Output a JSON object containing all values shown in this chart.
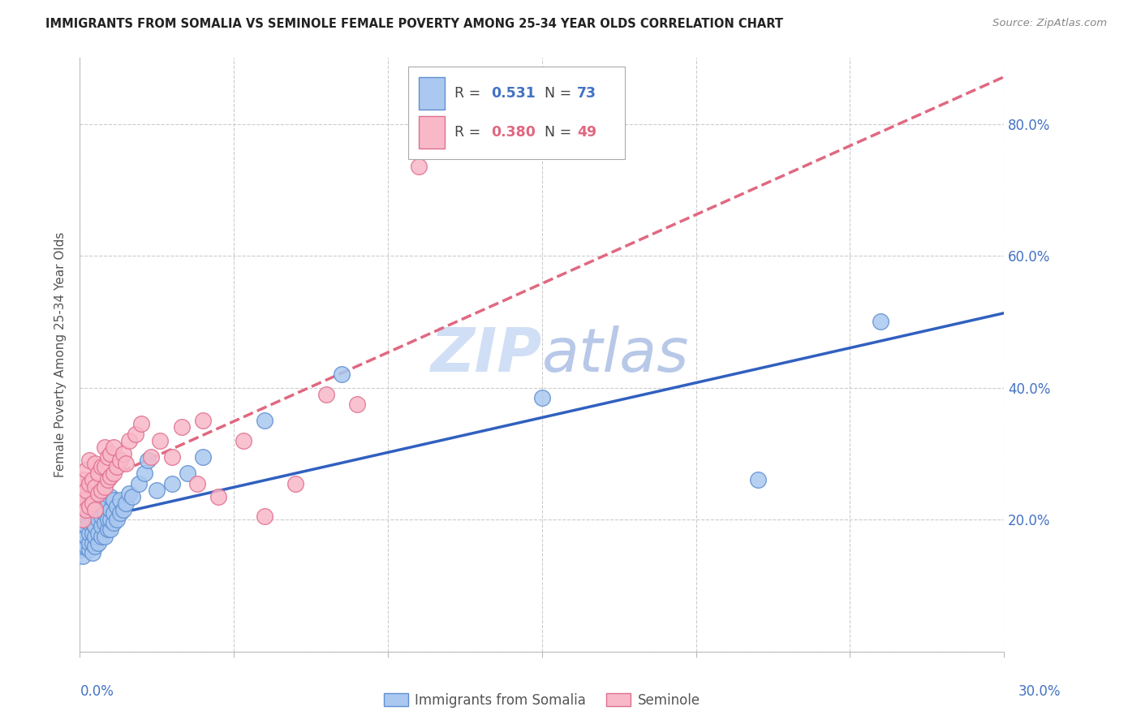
{
  "title": "IMMIGRANTS FROM SOMALIA VS SEMINOLE FEMALE POVERTY AMONG 25-34 YEAR OLDS CORRELATION CHART",
  "source": "Source: ZipAtlas.com",
  "ylabel": "Female Poverty Among 25-34 Year Olds",
  "xlim": [
    0.0,
    0.3
  ],
  "ylim": [
    0.0,
    0.9
  ],
  "r_somalia": 0.531,
  "n_somalia": 73,
  "r_seminole": 0.38,
  "n_seminole": 49,
  "color_somalia_fill": "#aac8f0",
  "color_somalia_edge": "#6090d0",
  "color_seminole_fill": "#f8b8c8",
  "color_seminole_edge": "#e07090",
  "color_somalia_line": "#3060c0",
  "color_seminole_line": "#e06880",
  "color_axis_text": "#4472c4",
  "watermark_color": "#d0dff5",
  "somalia_x": [
    0.0,
    0.0,
    0.0,
    0.0,
    0.001,
    0.001,
    0.001,
    0.001,
    0.001,
    0.002,
    0.002,
    0.002,
    0.002,
    0.002,
    0.003,
    0.003,
    0.003,
    0.003,
    0.003,
    0.003,
    0.004,
    0.004,
    0.004,
    0.004,
    0.004,
    0.004,
    0.005,
    0.005,
    0.005,
    0.005,
    0.005,
    0.006,
    0.006,
    0.006,
    0.006,
    0.007,
    0.007,
    0.007,
    0.007,
    0.008,
    0.008,
    0.008,
    0.008,
    0.009,
    0.009,
    0.009,
    0.01,
    0.01,
    0.01,
    0.01,
    0.011,
    0.011,
    0.011,
    0.012,
    0.012,
    0.013,
    0.013,
    0.014,
    0.015,
    0.016,
    0.017,
    0.019,
    0.021,
    0.022,
    0.025,
    0.03,
    0.035,
    0.04,
    0.06,
    0.085,
    0.15,
    0.22,
    0.26
  ],
  "somalia_y": [
    0.155,
    0.17,
    0.185,
    0.195,
    0.145,
    0.16,
    0.175,
    0.185,
    0.2,
    0.16,
    0.175,
    0.19,
    0.205,
    0.22,
    0.155,
    0.165,
    0.18,
    0.195,
    0.21,
    0.225,
    0.15,
    0.165,
    0.18,
    0.195,
    0.21,
    0.225,
    0.16,
    0.175,
    0.19,
    0.21,
    0.225,
    0.165,
    0.18,
    0.2,
    0.22,
    0.175,
    0.19,
    0.205,
    0.225,
    0.175,
    0.195,
    0.21,
    0.23,
    0.185,
    0.2,
    0.225,
    0.185,
    0.2,
    0.215,
    0.235,
    0.195,
    0.21,
    0.23,
    0.2,
    0.22,
    0.21,
    0.23,
    0.215,
    0.225,
    0.24,
    0.235,
    0.255,
    0.27,
    0.29,
    0.245,
    0.255,
    0.27,
    0.295,
    0.35,
    0.42,
    0.385,
    0.26,
    0.5
  ],
  "seminole_x": [
    0.0,
    0.0,
    0.001,
    0.001,
    0.001,
    0.002,
    0.002,
    0.002,
    0.003,
    0.003,
    0.003,
    0.004,
    0.004,
    0.005,
    0.005,
    0.005,
    0.006,
    0.006,
    0.007,
    0.007,
    0.008,
    0.008,
    0.008,
    0.009,
    0.009,
    0.01,
    0.01,
    0.011,
    0.011,
    0.012,
    0.013,
    0.014,
    0.015,
    0.016,
    0.018,
    0.02,
    0.023,
    0.026,
    0.03,
    0.033,
    0.038,
    0.04,
    0.045,
    0.053,
    0.06,
    0.07,
    0.08,
    0.09,
    0.11
  ],
  "seminole_y": [
    0.22,
    0.25,
    0.2,
    0.23,
    0.26,
    0.215,
    0.245,
    0.275,
    0.22,
    0.255,
    0.29,
    0.225,
    0.26,
    0.215,
    0.25,
    0.285,
    0.24,
    0.27,
    0.245,
    0.28,
    0.25,
    0.28,
    0.31,
    0.26,
    0.295,
    0.265,
    0.3,
    0.27,
    0.31,
    0.28,
    0.29,
    0.3,
    0.285,
    0.32,
    0.33,
    0.345,
    0.295,
    0.32,
    0.295,
    0.34,
    0.255,
    0.35,
    0.235,
    0.32,
    0.205,
    0.255,
    0.39,
    0.375,
    0.735
  ]
}
